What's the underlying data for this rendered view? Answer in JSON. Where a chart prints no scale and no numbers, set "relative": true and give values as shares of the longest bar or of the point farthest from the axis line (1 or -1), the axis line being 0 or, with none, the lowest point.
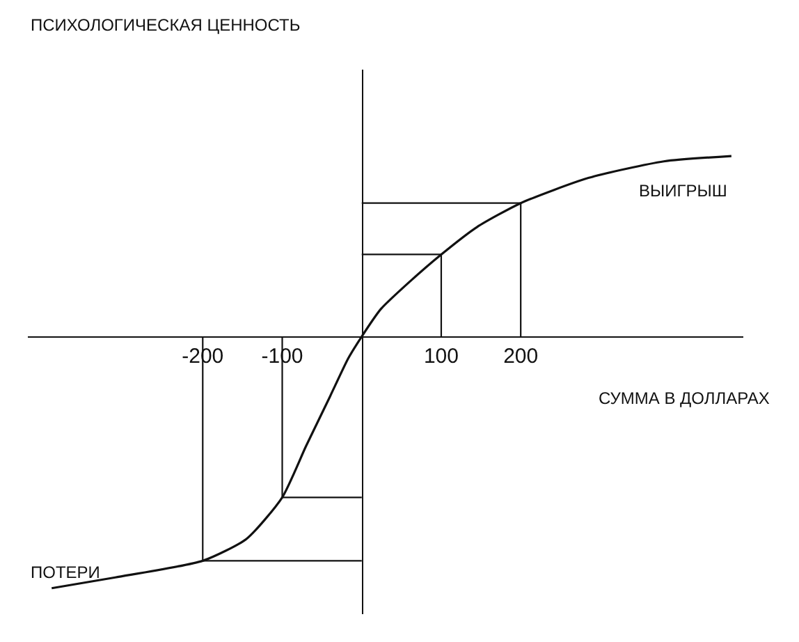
{
  "chart_data": {
    "type": "line",
    "relative": true,
    "xlabel": "СУММА В ДОЛЛАРАХ",
    "xlim": [
      -420,
      480
    ],
    "xticks": [
      -200,
      -100,
      100,
      200
    ],
    "grid": false,
    "marker": "none",
    "line_style": "solid",
    "annotations": [
      "ПСИХОЛОГИЧЕСКАЯ ЦЕННОСТЬ",
      "ВЫИГРЫШ",
      "ПОТЕРИ"
    ],
    "series": [
      {
        "color": "#111111",
        "x": [
          -390,
          -310,
          -200,
          -145,
          -100,
          -70,
          -40,
          -17,
          0,
          24,
          60,
          100,
          145,
          200,
          285,
          380,
          465
        ],
        "values": [
          -1,
          -0.957,
          -0.891,
          -0.804,
          -0.639,
          -0.435,
          -0.239,
          -0.087,
          0,
          0.109,
          0.217,
          0.326,
          0.435,
          0.53,
          0.63,
          0.696,
          0.717
        ]
      },
      {
        "color": "#111111",
        "x": [
          100,
          100,
          0
        ],
        "values": [
          0,
          0.326,
          0.326
        ]
      },
      {
        "color": "#111111",
        "x": [
          200,
          200,
          0
        ],
        "values": [
          0,
          0.53,
          0.53
        ]
      },
      {
        "color": "#111111",
        "x": [
          -100,
          -100,
          0
        ],
        "values": [
          0,
          -0.639,
          -0.639
        ]
      },
      {
        "color": "#111111",
        "x": [
          -200,
          -200,
          0
        ],
        "values": [
          0,
          -0.891,
          -0.891
        ]
      }
    ]
  }
}
